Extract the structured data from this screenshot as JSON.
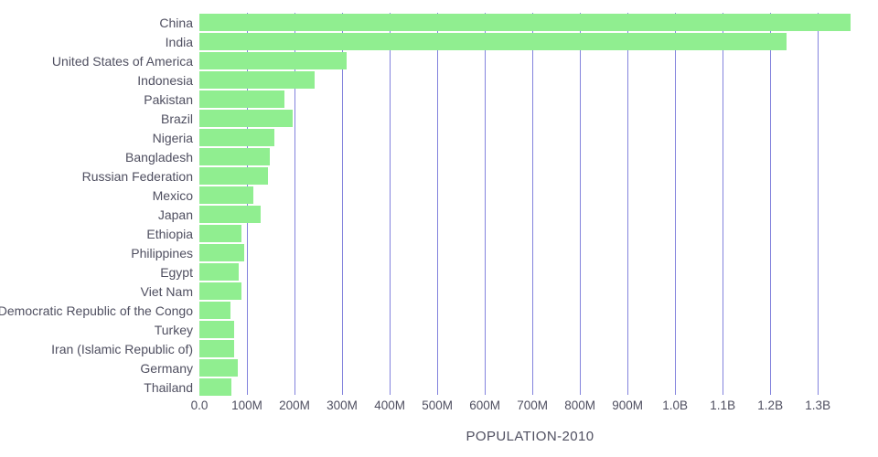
{
  "chart_data": {
    "type": "bar",
    "orientation": "horizontal",
    "title": "POPULATION-2010",
    "xlabel": "POPULATION-2010",
    "ylabel": "",
    "legend": "none",
    "grid": "vertical",
    "bar_color": "#90ee90",
    "gridline_color": "#5a5ad2",
    "text_color": "#4f4f60",
    "xlim_millions": [
      0,
      1390
    ],
    "categories": [
      "China",
      "India",
      "United States of America",
      "Indonesia",
      "Pakistan",
      "Brazil",
      "Nigeria",
      "Bangladesh",
      "Russian Federation",
      "Mexico",
      "Japan",
      "Ethiopia",
      "Philippines",
      "Egypt",
      "Viet Nam",
      "Democratic Republic of the Congo",
      "Turkey",
      "Iran (Islamic Republic of)",
      "Germany",
      "Thailand"
    ],
    "values_millions": [
      1368.8,
      1234.3,
      309.0,
      241.8,
      179.4,
      195.7,
      158.5,
      147.6,
      143.2,
      114.1,
      128.1,
      87.6,
      94.0,
      82.8,
      88.0,
      64.6,
      72.3,
      73.8,
      80.8,
      67.2
    ],
    "x_ticks": [
      {
        "label": "0.0",
        "millions": 0
      },
      {
        "label": "100M",
        "millions": 100
      },
      {
        "label": "200M",
        "millions": 200
      },
      {
        "label": "300M",
        "millions": 300
      },
      {
        "label": "400M",
        "millions": 400
      },
      {
        "label": "500M",
        "millions": 500
      },
      {
        "label": "600M",
        "millions": 600
      },
      {
        "label": "700M",
        "millions": 700
      },
      {
        "label": "800M",
        "millions": 800
      },
      {
        "label": "900M",
        "millions": 900
      },
      {
        "label": "1.0B",
        "millions": 1000
      },
      {
        "label": "1.1B",
        "millions": 1100
      },
      {
        "label": "1.2B",
        "millions": 1200
      },
      {
        "label": "1.3B",
        "millions": 1300
      }
    ]
  }
}
